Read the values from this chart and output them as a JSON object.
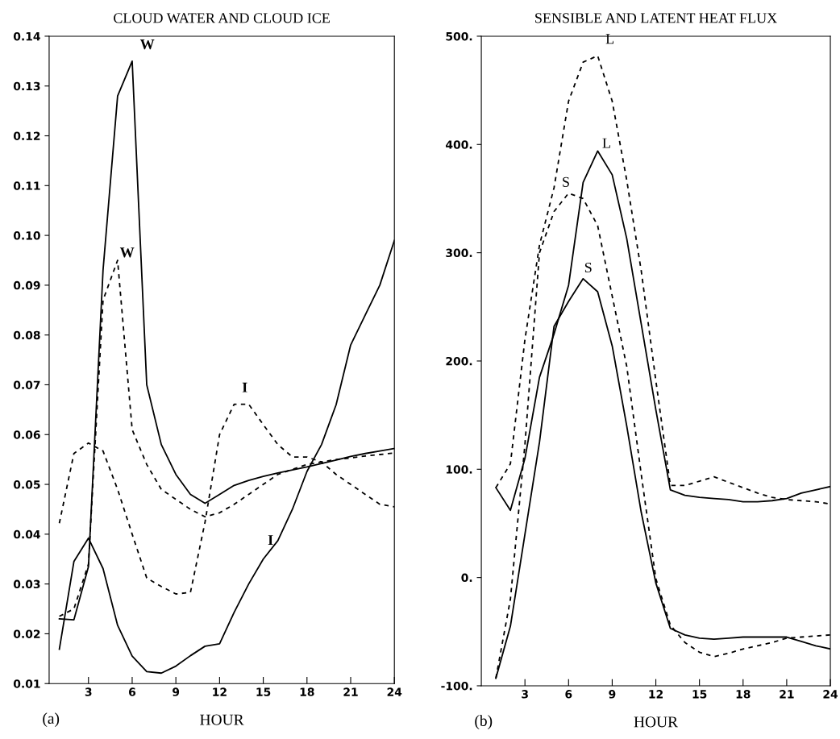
{
  "chart_data": [
    {
      "type": "line",
      "title": "CLOUD WATER AND CLOUD ICE",
      "xlabel": "HOUR",
      "annotations": [
        "(a)"
      ],
      "x": [
        1,
        2,
        3,
        4,
        5,
        6,
        7,
        8,
        9,
        10,
        11,
        12,
        13,
        14,
        15,
        16,
        17,
        18,
        19,
        20,
        21,
        22,
        23,
        24
      ],
      "series": [
        {
          "name": "W",
          "color": "#000000",
          "line_style": "solid",
          "values": [
            0.023,
            0.0228,
            0.0335,
            0.093,
            0.128,
            0.135,
            0.07,
            0.058,
            0.052,
            0.048,
            0.0462,
            0.048,
            0.0498,
            0.0508,
            0.0516,
            0.0523,
            0.0529,
            0.0535,
            0.0542,
            0.0549,
            0.0556,
            0.0562,
            0.0567,
            0.0572
          ]
        },
        {
          "name": "W",
          "color": "#000000",
          "line_style": "dashed",
          "values": [
            0.0235,
            0.025,
            0.034,
            0.087,
            0.095,
            0.061,
            0.054,
            0.049,
            0.047,
            0.045,
            0.0435,
            0.0443,
            0.046,
            0.048,
            0.05,
            0.052,
            0.053,
            0.054,
            0.0545,
            0.055,
            0.0553,
            0.0557,
            0.056,
            0.0563
          ]
        },
        {
          "name": "I",
          "color": "#000000",
          "line_style": "solid",
          "values": [
            0.0169,
            0.0345,
            0.0392,
            0.0331,
            0.0217,
            0.0155,
            0.0124,
            0.0121,
            0.0135,
            0.0156,
            0.0175,
            0.018,
            0.0243,
            0.03,
            0.035,
            0.0387,
            0.045,
            0.0526,
            0.058,
            0.066,
            0.078,
            0.084,
            0.09,
            0.099
          ]
        },
        {
          "name": "I",
          "color": "#000000",
          "line_style": "dashed",
          "values": [
            0.0422,
            0.0562,
            0.0583,
            0.0567,
            0.049,
            0.04,
            0.0312,
            0.0295,
            0.028,
            0.0283,
            0.0424,
            0.06,
            0.0661,
            0.0661,
            0.062,
            0.058,
            0.0555,
            0.0555,
            0.0545,
            0.052,
            0.05,
            0.048,
            0.046,
            0.0455
          ]
        }
      ],
      "xlim": [
        0.3,
        24
      ],
      "xticks": [
        3,
        6,
        9,
        12,
        15,
        18,
        21,
        24
      ],
      "ylim": [
        0.01,
        0.14
      ],
      "yticks": [
        {
          "value": 0.01,
          "label": "0.01"
        },
        {
          "value": 0.02,
          "label": "0.02"
        },
        {
          "value": 0.03,
          "label": "0.03"
        },
        {
          "value": 0.04,
          "label": "0.04"
        },
        {
          "value": 0.05,
          "label": "0.05"
        },
        {
          "value": 0.06,
          "label": "0.06"
        },
        {
          "value": 0.07,
          "label": "0.07"
        },
        {
          "value": 0.08,
          "label": "0.08"
        },
        {
          "value": 0.09,
          "label": "0.09"
        },
        {
          "value": 0.1,
          "label": "0.10"
        },
        {
          "value": 0.11,
          "label": "0.11"
        },
        {
          "value": 0.12,
          "label": "0.12"
        },
        {
          "value": 0.13,
          "label": "0.13"
        },
        {
          "value": 0.14,
          "label": "0.14"
        }
      ],
      "grid": false,
      "legend": false
    },
    {
      "type": "line",
      "title": "SENSIBLE AND LATENT HEAT FLUX",
      "xlabel": "HOUR",
      "annotations": [
        "(b)"
      ],
      "x": [
        1,
        2,
        3,
        4,
        5,
        6,
        7,
        8,
        9,
        10,
        11,
        12,
        13,
        14,
        15,
        16,
        17,
        18,
        19,
        20,
        21,
        22,
        23,
        24
      ],
      "series": [
        {
          "name": "L",
          "color": "#000000",
          "line_style": "dashed",
          "values": [
            83,
            105,
            220,
            307,
            360,
            440,
            476,
            482,
            440,
            367,
            283,
            182,
            85,
            85,
            89,
            93,
            88,
            83,
            78,
            74,
            72,
            71,
            70,
            68
          ]
        },
        {
          "name": "L",
          "color": "#000000",
          "line_style": "solid",
          "values": [
            83,
            62,
            110,
            185,
            225,
            270,
            365,
            394,
            372,
            313,
            234,
            155,
            81,
            76,
            74,
            73,
            72,
            70,
            70,
            71,
            73,
            78,
            81,
            84
          ]
        },
        {
          "name": "S",
          "color": "#000000",
          "line_style": "dashed",
          "values": [
            -93,
            -20,
            123,
            300,
            338,
            355,
            350,
            325,
            260,
            195,
            95,
            -1,
            -44,
            -60,
            -69,
            -73,
            -70,
            -66,
            -63,
            -60,
            -56,
            -55,
            -54,
            -53
          ]
        },
        {
          "name": "S",
          "color": "#000000",
          "line_style": "solid",
          "values": [
            -93,
            -45,
            40,
            125,
            232,
            255,
            276,
            264,
            214,
            140,
            60,
            -5,
            -47,
            -53,
            -56,
            -57,
            -56,
            -55,
            -55,
            -55,
            -55,
            -59,
            -63,
            -66
          ]
        }
      ],
      "xlim": [
        0,
        24
      ],
      "xticks": [
        3,
        6,
        9,
        12,
        15,
        18,
        21,
        24
      ],
      "ylim": [
        -100,
        500
      ],
      "yticks": [
        {
          "value": -100,
          "label": "-100."
        },
        {
          "value": 0,
          "label": "0."
        },
        {
          "value": 100,
          "label": "100."
        },
        {
          "value": 200,
          "label": "200."
        },
        {
          "value": 300,
          "label": "300."
        },
        {
          "value": 400,
          "label": "400."
        },
        {
          "value": 500,
          "label": "500."
        }
      ],
      "grid": false,
      "legend": false
    }
  ]
}
